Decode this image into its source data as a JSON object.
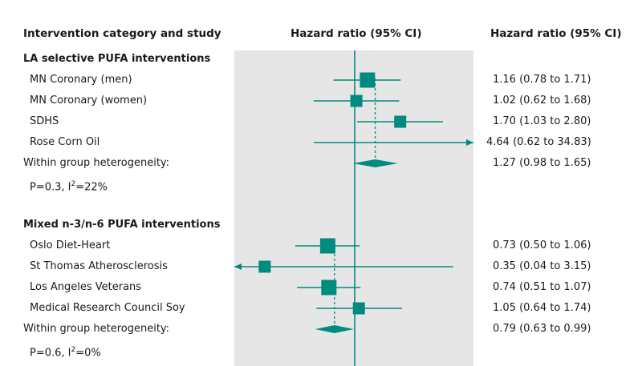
{
  "chart_data": {
    "type": "forest",
    "headers": {
      "study": "Intervention category and study",
      "plot": "Hazard ratio (95% CI)",
      "values": "Hazard ratio (95% CI)"
    },
    "xscale": "log",
    "xlim": [
      0.2,
      5.0
    ],
    "reference_line": 1.0,
    "groups": [
      {
        "title": "LA selective PUFA interventions",
        "studies": [
          {
            "name": "MN Coronary (men)",
            "hr": 1.16,
            "lo": 0.78,
            "hi": 1.71,
            "text": "1.16 (0.78 to 1.71)"
          },
          {
            "name": "MN Coronary (women)",
            "hr": 1.02,
            "lo": 0.62,
            "hi": 1.68,
            "text": "1.02 (0.62 to 1.68)"
          },
          {
            "name": "SDHS",
            "hr": 1.7,
            "lo": 1.03,
            "hi": 2.8,
            "text": "1.70 (1.03 to 2.80)"
          },
          {
            "name": "Rose Corn Oil",
            "hr": 4.64,
            "lo": 0.62,
            "hi": 34.83,
            "text": "4.64 (0.62 to 34.83)"
          }
        ],
        "pooled": {
          "label": "Within group heterogeneity:",
          "hr": 1.27,
          "lo": 0.98,
          "hi": 1.65,
          "text": "1.27 (0.98 to 1.65)"
        },
        "heterogeneity": {
          "p": "P=0.3, I",
          "i2": "=22%"
        }
      },
      {
        "title": "Mixed n-3/n-6 PUFA interventions",
        "studies": [
          {
            "name": "Oslo Diet-Heart",
            "hr": 0.73,
            "lo": 0.5,
            "hi": 1.06,
            "text": "0.73 (0.50 to 1.06)"
          },
          {
            "name": "St Thomas Atherosclerosis",
            "hr": 0.35,
            "lo": 0.04,
            "hi": 3.15,
            "text": "0.35 (0.04 to 3.15)"
          },
          {
            "name": "Los Angeles Veterans",
            "hr": 0.74,
            "lo": 0.51,
            "hi": 1.07,
            "text": "0.74 (0.51 to 1.07)"
          },
          {
            "name": "Medical Research Council Soy",
            "hr": 1.05,
            "lo": 0.64,
            "hi": 1.74,
            "text": "1.05 (0.64 to 1.74)"
          }
        ],
        "pooled": {
          "label": "Within group heterogeneity:",
          "hr": 0.79,
          "lo": 0.63,
          "hi": 0.99,
          "text": "0.79 (0.63 to 0.99)"
        },
        "heterogeneity": {
          "p": "P=0.6, I",
          "i2": "=0%"
        }
      }
    ],
    "colors": {
      "marker": "#008b80",
      "panel": "#e6e6e6",
      "reference": "#008b80"
    }
  }
}
